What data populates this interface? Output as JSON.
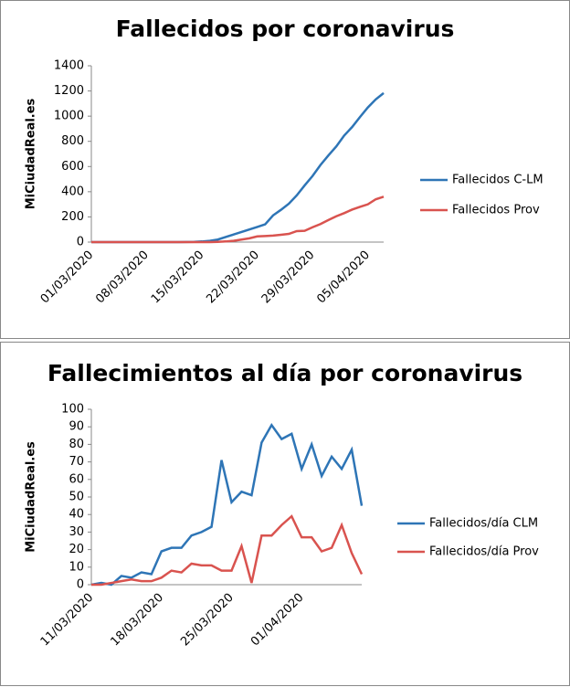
{
  "charts": [
    {
      "type": "line",
      "title": "Fallecidos por coronavirus",
      "y_label": "MiCiudadReal.es",
      "categories": [
        "01/03/2020",
        null,
        null,
        null,
        null,
        null,
        null,
        "08/03/2020",
        null,
        null,
        null,
        null,
        null,
        null,
        "15/03/2020",
        null,
        null,
        null,
        null,
        null,
        null,
        "22/03/2020",
        null,
        null,
        null,
        null,
        null,
        null,
        "29/03/2020",
        null,
        null,
        null,
        null,
        null,
        null,
        "05/04/2020",
        null,
        null
      ],
      "series": [
        {
          "name": "Fallecidos C-LM",
          "color": "#2e75b6",
          "values": [
            0,
            0,
            0,
            0,
            0,
            0,
            0,
            0,
            0,
            0,
            0,
            0,
            1,
            2,
            5,
            10,
            20,
            40,
            60,
            80,
            100,
            120,
            141,
            212,
            256,
            305,
            371,
            450,
            525,
            612,
            688,
            759,
            846,
            913,
            993,
            1069,
            1133,
            1183
          ]
        },
        {
          "name": "Fallecidos Prov",
          "color": "#d9534f",
          "values": [
            0,
            0,
            0,
            0,
            0,
            0,
            0,
            0,
            0,
            0,
            0,
            0,
            0,
            0,
            0,
            0,
            2,
            5,
            10,
            20,
            30,
            45,
            48,
            52,
            58,
            65,
            87,
            90,
            118,
            143,
            175,
            205,
            230,
            258,
            280,
            300,
            340,
            360
          ]
        }
      ],
      "ylim": [
        0,
        1400
      ],
      "yticks": [
        0,
        200,
        400,
        600,
        800,
        1000,
        1200,
        1400
      ],
      "grid": false,
      "legend": "right"
    },
    {
      "type": "line",
      "title": "Fallecimientos al día por coronavirus",
      "y_label": "MiCiudadReal.es",
      "categories": [
        "11/03/2020",
        null,
        null,
        null,
        null,
        null,
        null,
        "18/03/2020",
        null,
        null,
        null,
        null,
        null,
        null,
        "25/03/2020",
        null,
        null,
        null,
        null,
        null,
        null,
        "01/04/2020",
        null,
        null,
        null,
        null,
        null,
        null
      ],
      "series": [
        {
          "name": "Fallecidos/día CLM",
          "color": "#2e75b6",
          "values": [
            0,
            1,
            0,
            5,
            4,
            7,
            6,
            19,
            21,
            21,
            28,
            30,
            33,
            71,
            47,
            53,
            51,
            81,
            91,
            83,
            86,
            66,
            80,
            62,
            73,
            66,
            77,
            45
          ]
        },
        {
          "name": "Fallecidos/día Prov",
          "color": "#d9534f",
          "values": [
            0,
            0,
            1,
            2,
            3,
            2,
            2,
            4,
            8,
            7,
            12,
            11,
            11,
            8,
            8,
            22,
            1,
            28,
            28,
            34,
            39,
            27,
            27,
            19,
            21,
            34,
            18,
            6
          ]
        }
      ],
      "ylim": [
        0,
        100
      ],
      "yticks": [
        0,
        10,
        20,
        30,
        40,
        50,
        60,
        70,
        80,
        90,
        100
      ],
      "grid": false,
      "legend": "right"
    }
  ]
}
